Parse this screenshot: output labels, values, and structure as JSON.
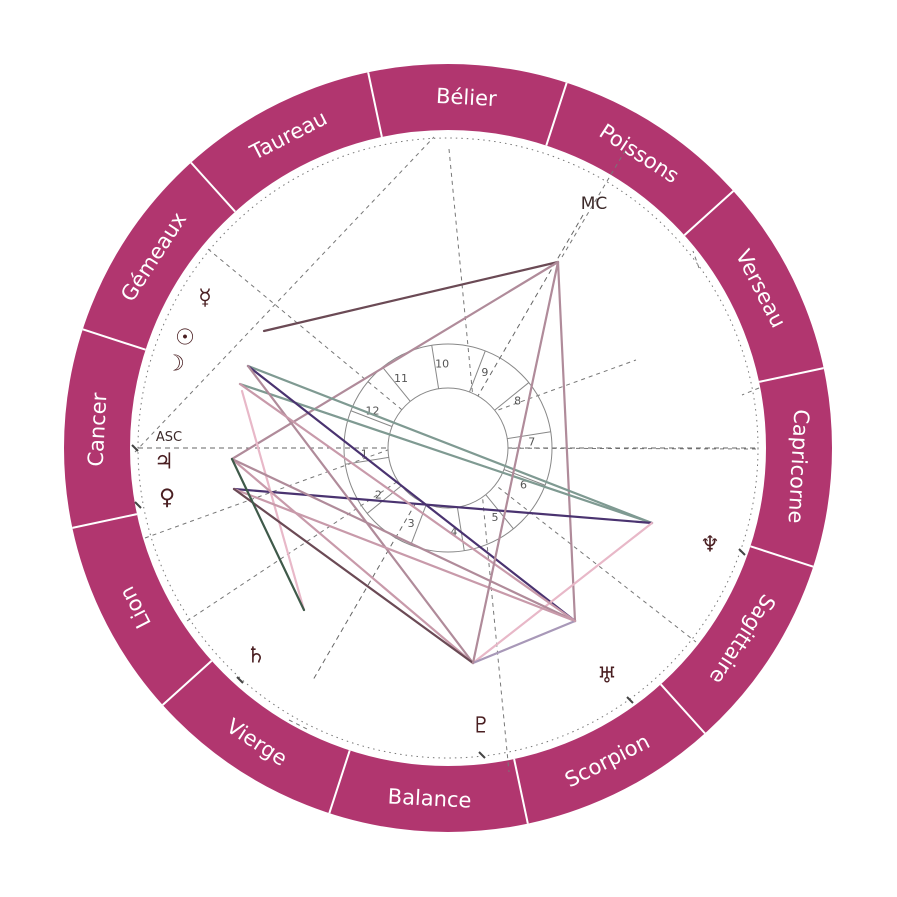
{
  "colors": {
    "ring": "#b1366f",
    "divider": "#ffffff",
    "house_line": "#555555",
    "planet": "#4a1f22"
  },
  "signs": [
    "Bélier",
    "Poissons",
    "Verseau",
    "Capricorne",
    "Sagittaire",
    "Scorpion",
    "Balance",
    "Vierge",
    "Lion",
    "Cancer",
    "Gémeaux",
    "Taureau"
  ],
  "houses": [
    "1",
    "2",
    "3",
    "4",
    "5",
    "6",
    "7",
    "8",
    "9",
    "10",
    "11",
    "12"
  ],
  "angles": {
    "asc": "ASC",
    "mc": "MC"
  },
  "planets": [
    {
      "name": "Mercure",
      "glyph": "☿"
    },
    {
      "name": "Soleil",
      "glyph": "☉"
    },
    {
      "name": "Lune",
      "glyph": "☽"
    },
    {
      "name": "Jupiter",
      "glyph": "♃"
    },
    {
      "name": "Vénus",
      "glyph": "♀"
    },
    {
      "name": "Saturne",
      "glyph": "♄"
    },
    {
      "name": "Pluton",
      "glyph": "♇"
    },
    {
      "name": "Uranus",
      "glyph": "♅"
    },
    {
      "name": "Neptune",
      "glyph": "♆"
    }
  ],
  "aspects": [
    {
      "color": "#6b4a55"
    },
    {
      "color": "#b08b9a"
    },
    {
      "color": "#b08b9a"
    },
    {
      "color": "#7f9a92"
    },
    {
      "color": "#7f9a92"
    },
    {
      "color": "#4a3370"
    },
    {
      "color": "#4a3370"
    },
    {
      "color": "#e8b8c8"
    },
    {
      "color": "#e8b8c8"
    },
    {
      "color": "#c89aaa"
    },
    {
      "color": "#b08b9a"
    },
    {
      "color": "#b08b9a"
    },
    {
      "color": "#c89aaa"
    },
    {
      "color": "#6b4a55"
    },
    {
      "color": "#a898b8"
    },
    {
      "color": "#3f5a4a"
    },
    {
      "color": "#c89aaa"
    },
    {
      "color": "#b08b9a"
    }
  ]
}
